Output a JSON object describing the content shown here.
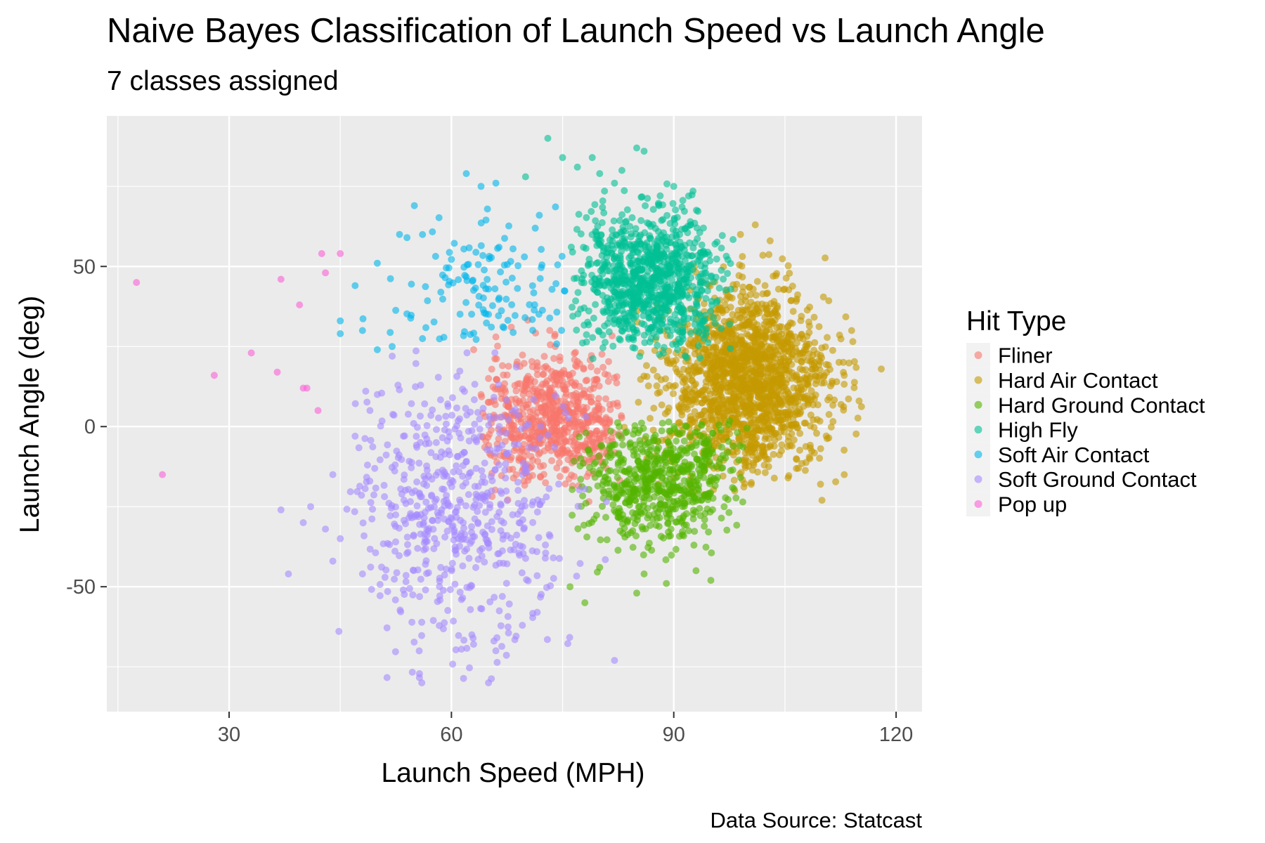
{
  "chart_data": {
    "type": "scatter",
    "title": "Naive Bayes Classification of Launch Speed vs Launch Angle",
    "subtitle": "7 classes assigned",
    "caption": "Data Source: Statcast",
    "xlabel": "Launch Speed (MPH)",
    "ylabel": "Launch Angle (deg)",
    "xlim": [
      13.5,
      123.5
    ],
    "ylim": [
      -89,
      97
    ],
    "x_ticks": [
      30,
      60,
      90,
      120
    ],
    "x_tick_labels": [
      "30",
      "60",
      "90",
      "120"
    ],
    "y_ticks": [
      -50,
      0,
      50
    ],
    "y_tick_labels": [
      "-50",
      "0",
      "50"
    ],
    "x_minor": [
      15,
      45,
      75,
      105
    ],
    "y_minor": [
      -75,
      -25,
      25,
      75
    ],
    "grid": true,
    "panel_background": "#ebebeb",
    "legend": {
      "title": "Hit Type",
      "position": "right"
    },
    "point_alpha": 0.6,
    "series": [
      {
        "name": "Fliner",
        "color": "#F8766D",
        "clusters": [
          {
            "cx": 74,
            "cy": 3,
            "sx": 5.5,
            "sy": 10,
            "n": 700,
            "xmin": 64,
            "xmax": 83,
            "ymin": -26,
            "ymax": 35
          }
        ],
        "points": [
          [
            63,
            24
          ],
          [
            66,
            28
          ],
          [
            65,
            15
          ],
          [
            64,
            10
          ]
        ]
      },
      {
        "name": "Hard Air Contact",
        "color": "#C49A00",
        "clusters": [
          {
            "cx": 100,
            "cy": 14,
            "sx": 5.5,
            "sy": 14,
            "n": 1700,
            "xmin": 83,
            "xmax": 116,
            "ymin": -22,
            "ymax": 55
          }
        ],
        "points": [
          [
            118,
            18
          ],
          [
            114,
            30
          ],
          [
            113,
            16
          ],
          [
            115,
            8
          ],
          [
            101,
            63
          ],
          [
            103,
            58
          ],
          [
            99,
            60
          ],
          [
            110,
            -23
          ],
          [
            113,
            -15
          ]
        ]
      },
      {
        "name": "Hard Ground Contact",
        "color": "#53B400",
        "clusters": [
          {
            "cx": 88,
            "cy": -16,
            "sx": 5,
            "sy": 10,
            "n": 650,
            "xmin": 76,
            "xmax": 100,
            "ymin": -52,
            "ymax": 2
          }
        ],
        "points": [
          [
            78,
            -55
          ],
          [
            85,
            -52
          ],
          [
            89,
            -49
          ],
          [
            93,
            -45
          ],
          [
            95,
            -48
          ],
          [
            86,
            -46
          ],
          [
            76,
            -50
          ],
          [
            80,
            -44
          ]
        ]
      },
      {
        "name": "High Fly",
        "color": "#00C094",
        "clusters": [
          {
            "cx": 87,
            "cy": 46,
            "sx": 5,
            "sy": 10,
            "n": 950,
            "xmin": 76,
            "xmax": 98,
            "ymin": 21,
            "ymax": 76
          }
        ],
        "points": [
          [
            73,
            90
          ],
          [
            79,
            84
          ],
          [
            85,
            87
          ],
          [
            80,
            79
          ],
          [
            77,
            81
          ],
          [
            90,
            75
          ],
          [
            92,
            72
          ],
          [
            70,
            78
          ],
          [
            75,
            84
          ],
          [
            83,
            80
          ],
          [
            86,
            86
          ],
          [
            82,
            76
          ],
          [
            88,
            69
          ],
          [
            94,
            62
          ]
        ]
      },
      {
        "name": "Soft Air Contact",
        "color": "#00B6EB",
        "clusters": [
          {
            "cx": 65,
            "cy": 42,
            "sx": 6,
            "sy": 10,
            "n": 130,
            "xmin": 45,
            "xmax": 76,
            "ymin": 24,
            "ymax": 70
          }
        ],
        "points": [
          [
            62,
            79
          ],
          [
            55,
            69
          ],
          [
            53,
            60
          ],
          [
            54,
            59
          ],
          [
            50,
            51
          ],
          [
            47,
            44
          ],
          [
            45,
            33
          ],
          [
            45,
            29
          ],
          [
            48,
            30
          ],
          [
            50,
            24
          ],
          [
            52,
            25
          ],
          [
            66,
            76
          ],
          [
            64,
            75
          ]
        ]
      },
      {
        "name": "Soft Ground Contact",
        "color": "#A58AFF",
        "clusters": [
          {
            "cx": 61,
            "cy": -26,
            "sx": 7,
            "sy": 22,
            "n": 600,
            "xmin": 44,
            "xmax": 82,
            "ymin": -80,
            "ymax": 24
          }
        ],
        "points": [
          [
            38,
            -46
          ],
          [
            37,
            -26
          ],
          [
            40,
            -30
          ],
          [
            41,
            -25
          ],
          [
            43,
            -32
          ],
          [
            44,
            -42
          ],
          [
            45,
            -35
          ],
          [
            47,
            -3
          ],
          [
            49,
            5
          ],
          [
            50,
            10
          ],
          [
            56,
            -80
          ],
          [
            65,
            -80
          ],
          [
            82,
            -73
          ],
          [
            66,
            -70
          ],
          [
            48,
            -46
          ],
          [
            44,
            -15
          ]
        ]
      },
      {
        "name": "Pop up",
        "color": "#FB61D7",
        "clusters": [],
        "points": [
          [
            17.5,
            45
          ],
          [
            21,
            -15
          ],
          [
            28,
            16
          ],
          [
            33,
            23
          ],
          [
            36.5,
            17
          ],
          [
            37,
            46
          ],
          [
            39.5,
            38
          ],
          [
            40,
            12
          ],
          [
            40.5,
            12
          ],
          [
            42,
            5
          ],
          [
            42.5,
            54
          ],
          [
            43,
            48
          ],
          [
            45,
            54
          ]
        ]
      }
    ]
  }
}
